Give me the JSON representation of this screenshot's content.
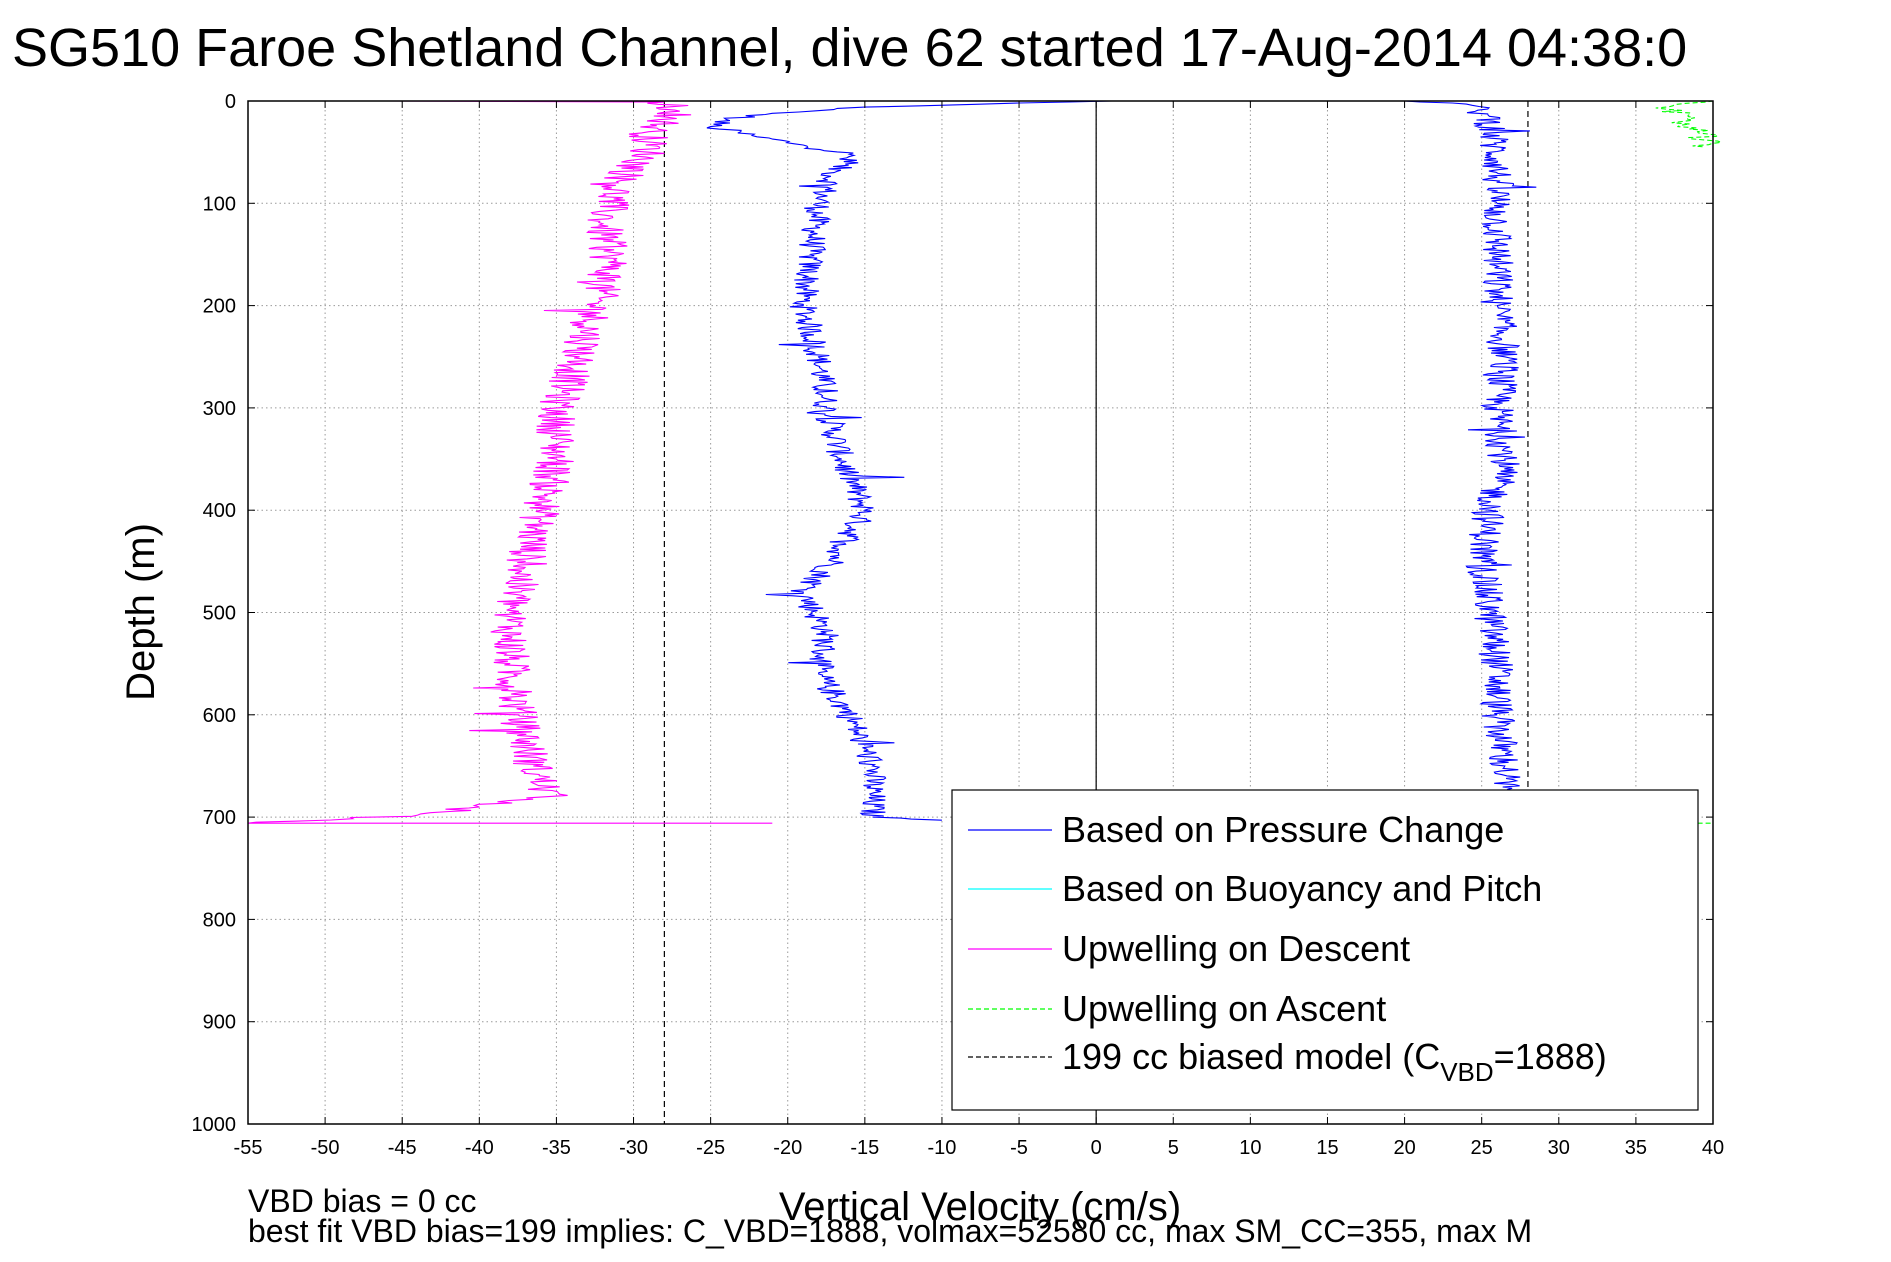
{
  "chart_data": {
    "type": "line",
    "title": "SG510 Faroe Shetland Channel, dive 62 started 17-Aug-2014 04:38:0",
    "xlabel": "Vertical Velocity (cm/s)",
    "ylabel": "Depth (m)",
    "xlim": [
      -55,
      40
    ],
    "ylim": [
      0,
      1000
    ],
    "y_reversed": true,
    "grid": true,
    "xticks": [
      -55,
      -50,
      -45,
      -40,
      -35,
      -30,
      -25,
      -20,
      -15,
      -10,
      -5,
      0,
      5,
      10,
      15,
      20,
      25,
      30,
      35,
      40
    ],
    "yticks": [
      0,
      100,
      200,
      300,
      400,
      500,
      600,
      700,
      800,
      900,
      1000
    ],
    "legend_position": "bottom-right",
    "legend": [
      {
        "name": "Based on Pressure Change",
        "color": "#0000ff",
        "style": "solid"
      },
      {
        "name": "Based on Buoyancy and Pitch",
        "color": "#00ffff",
        "style": "solid"
      },
      {
        "name": "Upwelling on Descent",
        "color": "#ff00ff",
        "style": "solid"
      },
      {
        "name": "Upwelling on Ascent",
        "color": "#00ff00",
        "style": "dashed"
      },
      {
        "name": "199 cc biased model (C",
        "sub": "VBD",
        "suffix": "=1888)",
        "color": "#000000",
        "style": "dashed"
      }
    ],
    "vertical_lines": [
      {
        "x": 0,
        "style": "solid",
        "ylim": [
          0,
          1000
        ]
      },
      {
        "x": -28,
        "style": "dashed",
        "ylim": [
          0,
          1000
        ]
      },
      {
        "x": 28,
        "style": "dashed",
        "ylim": [
          0,
          700
        ]
      }
    ],
    "series": [
      {
        "id": "pressure_descent",
        "color": "#0000ff",
        "style": "solid",
        "noise": 0.9,
        "points": [
          [
            1,
            0
          ],
          [
            -5,
            2
          ],
          [
            -15,
            6
          ],
          [
            -21,
            12
          ],
          [
            -24,
            18
          ],
          [
            -25,
            25
          ],
          [
            -22,
            35
          ],
          [
            -19,
            43
          ],
          [
            -16,
            52
          ],
          [
            -17,
            70
          ],
          [
            -18,
            100
          ],
          [
            -18.5,
            150
          ],
          [
            -19,
            200
          ],
          [
            -18,
            250
          ],
          [
            -17.5,
            300
          ],
          [
            -16.5,
            350
          ],
          [
            -15,
            400
          ],
          [
            -17,
            450
          ],
          [
            -19,
            480
          ],
          [
            -17.5,
            520
          ],
          [
            -18,
            560
          ],
          [
            -16,
            600
          ],
          [
            -14.5,
            650
          ],
          [
            -14.5,
            700
          ],
          [
            -12,
            702
          ],
          [
            -10,
            703
          ]
        ]
      },
      {
        "id": "upwelling_descent",
        "color": "#ff00ff",
        "style": "solid",
        "noise": 1.3,
        "points": [
          [
            -46,
            0
          ],
          [
            -28,
            1
          ],
          [
            -27,
            10
          ],
          [
            -29,
            30
          ],
          [
            -29,
            50
          ],
          [
            -31,
            80
          ],
          [
            -32,
            120
          ],
          [
            -31.5,
            160
          ],
          [
            -32.5,
            200
          ],
          [
            -33.5,
            250
          ],
          [
            -35,
            300
          ],
          [
            -35,
            350
          ],
          [
            -36,
            400
          ],
          [
            -37,
            450
          ],
          [
            -38,
            500
          ],
          [
            -38,
            550
          ],
          [
            -37.5,
            600
          ],
          [
            -36.5,
            650
          ],
          [
            -35.5,
            680
          ],
          [
            -40,
            690
          ],
          [
            -44,
            698
          ],
          [
            -52,
            704
          ],
          [
            -55,
            706
          ],
          [
            -21,
            706
          ]
        ]
      },
      {
        "id": "pressure_ascent",
        "color": "#0000ff",
        "style": "solid",
        "noise": 1.1,
        "points": [
          [
            20,
            0
          ],
          [
            24,
            3
          ],
          [
            25.5,
            15
          ],
          [
            26,
            60
          ],
          [
            26,
            100
          ],
          [
            26,
            150
          ],
          [
            26,
            200
          ],
          [
            26.5,
            250
          ],
          [
            26,
            300
          ],
          [
            26.5,
            350
          ],
          [
            25.5,
            400
          ],
          [
            25,
            450
          ],
          [
            25.5,
            500
          ],
          [
            26,
            550
          ],
          [
            26,
            600
          ],
          [
            26.5,
            650
          ],
          [
            26.5,
            690
          ]
        ]
      },
      {
        "id": "upwelling_ascent",
        "color": "#00ff00",
        "style": "dashed",
        "noise": 1.2,
        "points": [
          [
            27,
            0
          ],
          [
            40,
            0
          ],
          [
            37,
            8
          ],
          [
            38,
            20
          ],
          [
            39,
            30
          ],
          [
            39.5,
            45
          ]
        ]
      },
      {
        "id": "upwelling_ascent_bottom",
        "color": "#00ff00",
        "style": "dashed",
        "noise": 0,
        "points": [
          [
            39,
            706
          ],
          [
            40,
            706
          ]
        ]
      }
    ]
  },
  "notes": {
    "line1": "VBD bias = 0 cc",
    "line2": "best fit VBD bias=199 implies: C_VBD=1888, volmax=52580 cc, max SM_CC=355, max M"
  }
}
